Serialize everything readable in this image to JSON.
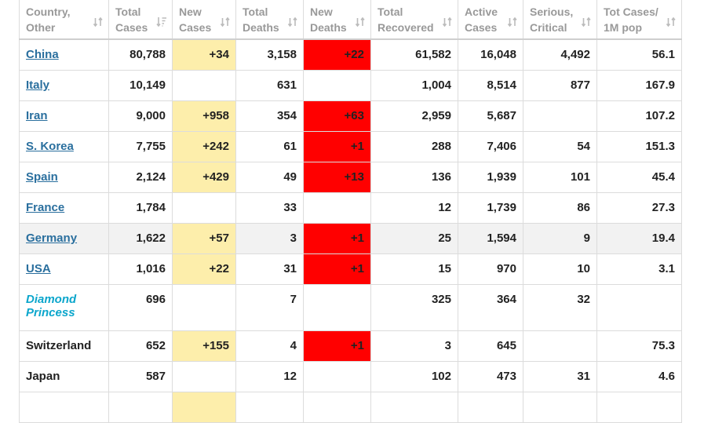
{
  "columns": [
    {
      "key": "country",
      "label": "Country, Other",
      "line1": "Country,",
      "line2": "Other",
      "sort_icon": "sort-icon"
    },
    {
      "key": "total_cases",
      "label": "Total Cases",
      "line1": "Total",
      "line2": "Cases",
      "sort_icon": "sort-desc-icon"
    },
    {
      "key": "new_cases",
      "label": "New Cases",
      "line1": "New",
      "line2": "Cases",
      "sort_icon": "sort-icon"
    },
    {
      "key": "total_deaths",
      "label": "Total Deaths",
      "line1": "Total",
      "line2": "Deaths",
      "sort_icon": "sort-icon"
    },
    {
      "key": "new_deaths",
      "label": "New Deaths",
      "line1": "New",
      "line2": "Deaths",
      "sort_icon": "sort-icon"
    },
    {
      "key": "total_recovered",
      "label": "Total Recovered",
      "line1": "Total",
      "line2": "Recovered",
      "sort_icon": "sort-icon"
    },
    {
      "key": "active_cases",
      "label": "Active Cases",
      "line1": "Active",
      "line2": "Cases",
      "sort_icon": "sort-icon"
    },
    {
      "key": "serious_critical",
      "label": "Serious, Critical",
      "line1": "Serious,",
      "line2": "Critical",
      "sort_icon": "sort-icon"
    },
    {
      "key": "tot_cases_per_1m",
      "label": "Tot Cases/ 1M pop",
      "line1": "Tot Cases/",
      "line2": "1M pop",
      "sort_icon": "sort-icon"
    }
  ],
  "rows": [
    {
      "country": "China",
      "country_style": "link",
      "total_cases": "80,788",
      "new_cases": "+34",
      "total_deaths": "3,158",
      "new_deaths": "+22",
      "total_recovered": "61,582",
      "active_cases": "16,048",
      "serious_critical": "4,492",
      "tot_cases_per_1m": "56.1"
    },
    {
      "country": "Italy",
      "country_style": "link",
      "total_cases": "10,149",
      "new_cases": "",
      "total_deaths": "631",
      "new_deaths": "",
      "total_recovered": "1,004",
      "active_cases": "8,514",
      "serious_critical": "877",
      "tot_cases_per_1m": "167.9"
    },
    {
      "country": "Iran",
      "country_style": "link",
      "total_cases": "9,000",
      "new_cases": "+958",
      "total_deaths": "354",
      "new_deaths": "+63",
      "total_recovered": "2,959",
      "active_cases": "5,687",
      "serious_critical": "",
      "tot_cases_per_1m": "107.2"
    },
    {
      "country": "S. Korea",
      "country_style": "link",
      "total_cases": "7,755",
      "new_cases": "+242",
      "total_deaths": "61",
      "new_deaths": "+1",
      "total_recovered": "288",
      "active_cases": "7,406",
      "serious_critical": "54",
      "tot_cases_per_1m": "151.3"
    },
    {
      "country": "Spain",
      "country_style": "link",
      "total_cases": "2,124",
      "new_cases": "+429",
      "total_deaths": "49",
      "new_deaths": "+13",
      "total_recovered": "136",
      "active_cases": "1,939",
      "serious_critical": "101",
      "tot_cases_per_1m": "45.4"
    },
    {
      "country": "France",
      "country_style": "link",
      "total_cases": "1,784",
      "new_cases": "",
      "total_deaths": "33",
      "new_deaths": "",
      "total_recovered": "12",
      "active_cases": "1,739",
      "serious_critical": "86",
      "tot_cases_per_1m": "27.3"
    },
    {
      "country": "Germany",
      "country_style": "link",
      "total_cases": "1,622",
      "new_cases": "+57",
      "total_deaths": "3",
      "new_deaths": "+1",
      "total_recovered": "25",
      "active_cases": "1,594",
      "serious_critical": "9",
      "tot_cases_per_1m": "19.4"
    },
    {
      "country": "USA",
      "country_style": "link",
      "total_cases": "1,016",
      "new_cases": "+22",
      "total_deaths": "31",
      "new_deaths": "+1",
      "total_recovered": "15",
      "active_cases": "970",
      "serious_critical": "10",
      "tot_cases_per_1m": "3.1"
    },
    {
      "country": "Diamond Princess",
      "country_style": "ship",
      "total_cases": "696",
      "new_cases": "",
      "total_deaths": "7",
      "new_deaths": "",
      "total_recovered": "325",
      "active_cases": "364",
      "serious_critical": "32",
      "tot_cases_per_1m": ""
    },
    {
      "country": "Switzerland",
      "country_style": "plain",
      "total_cases": "652",
      "new_cases": "+155",
      "total_deaths": "4",
      "new_deaths": "+1",
      "total_recovered": "3",
      "active_cases": "645",
      "serious_critical": "",
      "tot_cases_per_1m": "75.3"
    },
    {
      "country": "Japan",
      "country_style": "plain",
      "total_cases": "587",
      "new_cases": "",
      "total_deaths": "12",
      "new_deaths": "",
      "total_recovered": "102",
      "active_cases": "473",
      "serious_critical": "31",
      "tot_cases_per_1m": "4.6"
    },
    {
      "country": "",
      "country_style": "plain",
      "total_cases": "",
      "new_cases": "",
      "total_deaths": "",
      "new_deaths": "",
      "total_recovered": "",
      "active_cases": "",
      "serious_critical": "",
      "tot_cases_per_1m": ""
    }
  ],
  "partial_row_new_cases_highlight": true,
  "hovered_row": "Germany",
  "colors": {
    "new_cases_bg": "#fdeeab",
    "new_deaths_bg": "#ff0000",
    "link": "#2a6f9e",
    "ship_link": "#0ba6cc",
    "header_text": "#999999",
    "row_hover_bg": "#f2f2f2"
  }
}
